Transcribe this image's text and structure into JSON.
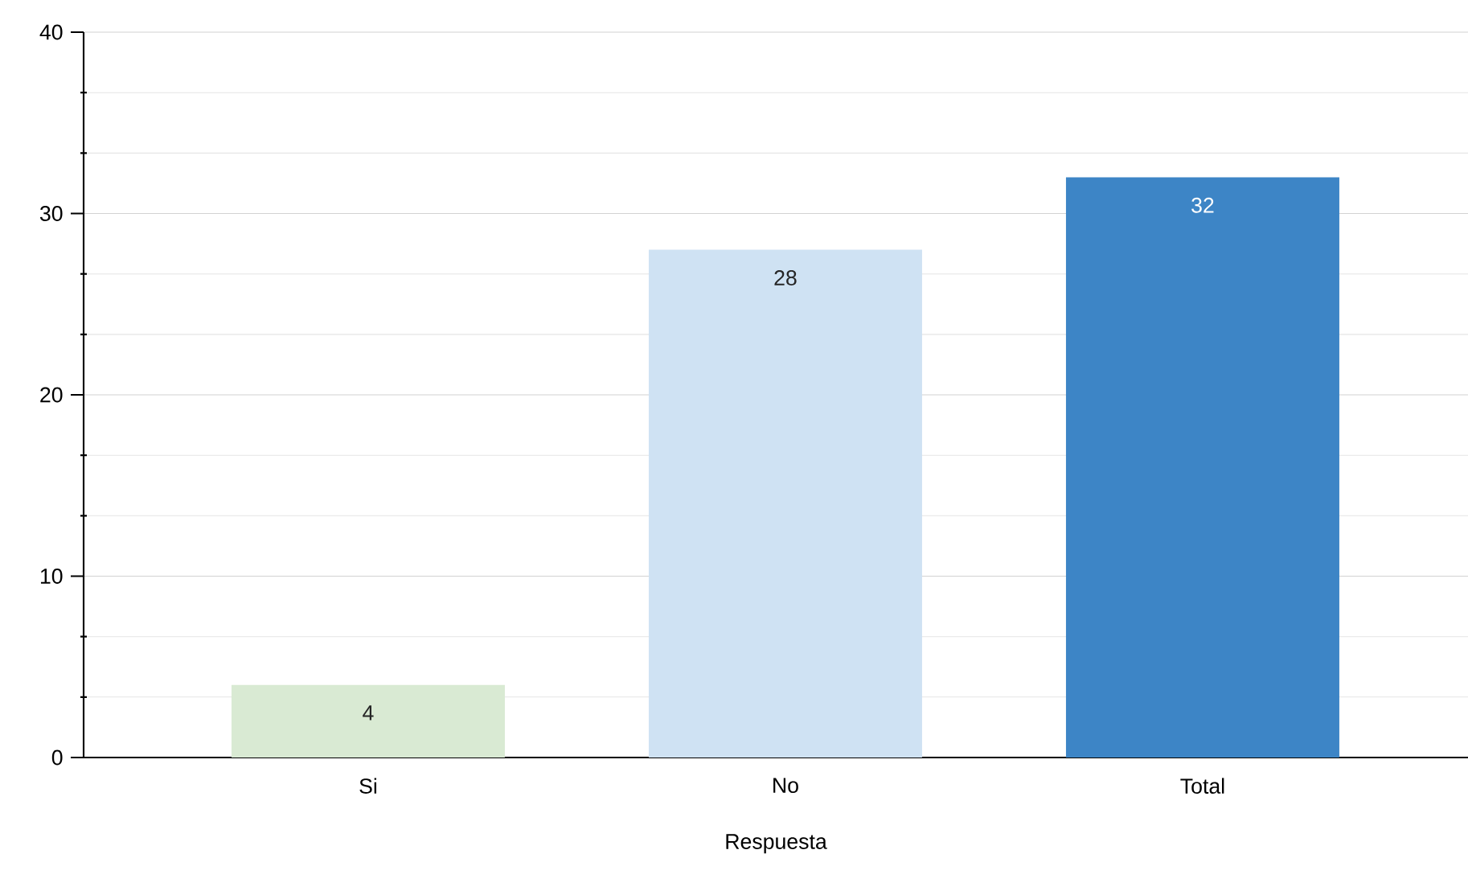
{
  "chart_data": {
    "type": "bar",
    "xlabel": "Respuesta",
    "categories": [
      "Si",
      "No",
      "Total"
    ],
    "values": [
      4,
      28,
      32
    ],
    "colors": [
      "#d9ead3",
      "#cfe2f3",
      "#3d85c6"
    ],
    "ylim": [
      0,
      40
    ],
    "yticks": [
      0,
      {
        "value": 3.333,
        "label": null
      },
      {
        "value": 6.667,
        "label": null
      },
      10,
      {
        "value": 13.333,
        "label": null
      },
      {
        "value": 16.667,
        "label": null
      },
      20,
      {
        "value": 23.333,
        "label": null
      },
      {
        "value": 26.667,
        "label": null
      },
      30,
      {
        "value": 33.333,
        "label": null
      },
      {
        "value": 36.667,
        "label": null
      },
      40
    ],
    "grid": "y",
    "data_labels": true
  }
}
